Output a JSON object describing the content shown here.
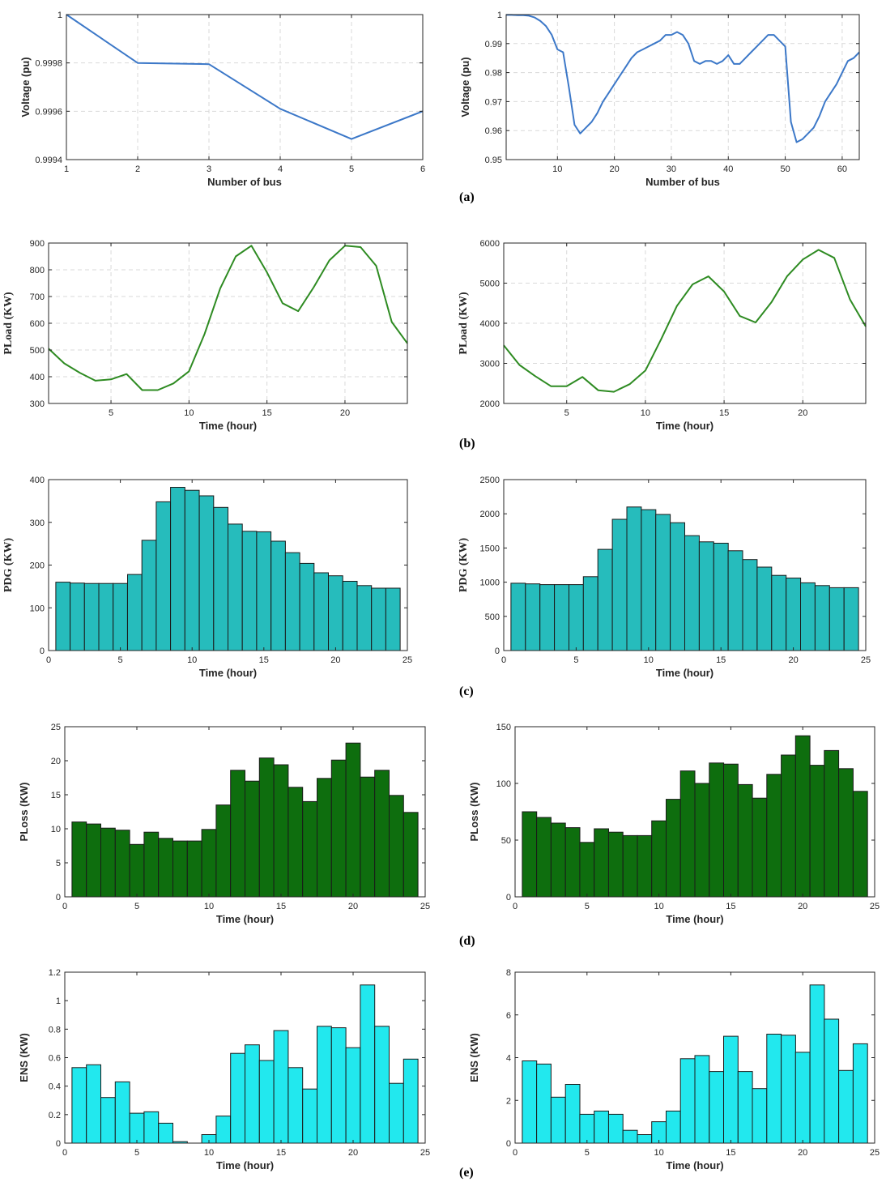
{
  "colors": {
    "voltage_line": "#3c78c8",
    "load_line": "#2e8b22",
    "pdg_bar": "#26bcbc",
    "ploss_bar": "#0e6e0e",
    "ens_bar": "#22e8ee",
    "bar_edge": "#1a1a1a"
  },
  "panel_labels": [
    "(a)",
    "(b)",
    "(c)",
    "(d)",
    "(e)"
  ],
  "chart_data": [
    {
      "type": "line",
      "panel": "(a)",
      "xlabel": "Number of bus",
      "ylabel": "Voltage (pu)",
      "xlim": [
        1,
        6
      ],
      "ylim": [
        0.9994,
        1.0
      ],
      "xticks": [
        1,
        2,
        3,
        4,
        5,
        6
      ],
      "yticks": [
        0.9994,
        0.9996,
        0.9998,
        1
      ],
      "ytick_labels": [
        "0.9994",
        "0.9996",
        "0.9998",
        "1"
      ],
      "grid": true,
      "x": [
        1,
        2,
        3,
        4,
        5,
        6
      ],
      "values": [
        1.0,
        0.9998,
        0.999795,
        0.99961,
        0.999485,
        0.9996
      ]
    },
    {
      "type": "line",
      "panel": "(a)",
      "xlabel": "Number of bus",
      "ylabel": "Voltage (pu)",
      "xlim": [
        1,
        63
      ],
      "ylim": [
        0.95,
        1.0
      ],
      "xticks": [
        10,
        20,
        30,
        40,
        50,
        60
      ],
      "yticks": [
        0.95,
        0.96,
        0.97,
        0.98,
        0.99,
        1
      ],
      "ytick_labels": [
        "0.95",
        "0.96",
        "0.97",
        "0.98",
        "0.99",
        "1"
      ],
      "grid": true,
      "x": [
        1,
        2,
        3,
        4,
        5,
        6,
        7,
        8,
        9,
        10,
        11,
        12,
        13,
        14,
        15,
        16,
        17,
        18,
        19,
        20,
        21,
        22,
        23,
        24,
        25,
        26,
        27,
        28,
        29,
        30,
        31,
        32,
        33,
        34,
        35,
        36,
        37,
        38,
        39,
        40,
        41,
        42,
        43,
        44,
        45,
        46,
        47,
        48,
        49,
        50,
        51,
        52,
        53,
        54,
        55,
        56,
        57,
        58,
        59,
        60,
        61,
        62,
        63
      ],
      "values": [
        0.9999,
        0.9999,
        0.9998,
        0.9998,
        0.9996,
        0.999,
        0.9978,
        0.996,
        0.993,
        0.988,
        0.987,
        0.975,
        0.962,
        0.959,
        0.961,
        0.963,
        0.966,
        0.97,
        0.973,
        0.976,
        0.979,
        0.982,
        0.985,
        0.987,
        0.988,
        0.989,
        0.99,
        0.991,
        0.993,
        0.993,
        0.994,
        0.993,
        0.99,
        0.984,
        0.983,
        0.984,
        0.984,
        0.983,
        0.984,
        0.986,
        0.983,
        0.983,
        0.985,
        0.987,
        0.989,
        0.991,
        0.993,
        0.993,
        0.991,
        0.989,
        0.963,
        0.956,
        0.957,
        0.959,
        0.961,
        0.965,
        0.97,
        0.973,
        0.976,
        0.98,
        0.984,
        0.985,
        0.987
      ]
    },
    {
      "type": "line",
      "panel": "(b)",
      "xlabel": "Time (hour)",
      "ylabel": "PLoad (KW)",
      "xlim": [
        1,
        24
      ],
      "ylim": [
        300,
        900
      ],
      "xticks": [
        5,
        10,
        15,
        20
      ],
      "yticks": [
        300,
        400,
        500,
        600,
        700,
        800,
        900
      ],
      "grid": true,
      "x": [
        1,
        2,
        3,
        4,
        5,
        6,
        7,
        8,
        9,
        10,
        11,
        12,
        13,
        14,
        15,
        16,
        17,
        18,
        19,
        20,
        21,
        22,
        23,
        24
      ],
      "values": [
        505,
        450,
        415,
        385,
        390,
        410,
        350,
        350,
        375,
        420,
        560,
        730,
        850,
        890,
        790,
        675,
        645,
        735,
        835,
        890,
        885,
        815,
        605,
        525
      ]
    },
    {
      "type": "line",
      "panel": "(b)",
      "xlabel": "Time (hour)",
      "ylabel": "PLoad (KW)",
      "xlim": [
        1,
        24
      ],
      "ylim": [
        2000,
        6000
      ],
      "xticks": [
        5,
        10,
        15,
        20
      ],
      "yticks": [
        2000,
        3000,
        4000,
        5000,
        6000
      ],
      "grid": true,
      "x": [
        1,
        2,
        3,
        4,
        5,
        6,
        7,
        8,
        9,
        10,
        11,
        12,
        13,
        14,
        15,
        16,
        17,
        18,
        19,
        20,
        21,
        22,
        23,
        24
      ],
      "values": [
        3450,
        2960,
        2680,
        2430,
        2430,
        2660,
        2330,
        2290,
        2480,
        2820,
        3600,
        4430,
        4970,
        5170,
        4790,
        4180,
        4020,
        4520,
        5170,
        5590,
        5830,
        5630,
        4590,
        3920
      ]
    },
    {
      "type": "bar",
      "panel": "(c)",
      "xlabel": "Time (hour)",
      "ylabel": "PDG (KW)",
      "xlim": [
        0,
        25
      ],
      "ylim": [
        0,
        400
      ],
      "xticks": [
        0,
        5,
        10,
        15,
        20,
        25
      ],
      "yticks": [
        0,
        100,
        200,
        300,
        400
      ],
      "grid": false,
      "x": [
        1,
        2,
        3,
        4,
        5,
        6,
        7,
        8,
        9,
        10,
        11,
        12,
        13,
        14,
        15,
        16,
        17,
        18,
        19,
        20,
        21,
        22,
        23,
        24
      ],
      "values": [
        160,
        158,
        157,
        157,
        157,
        178,
        258,
        348,
        382,
        375,
        362,
        335,
        296,
        279,
        278,
        256,
        229,
        204,
        182,
        175,
        162,
        152,
        146,
        146
      ]
    },
    {
      "type": "bar",
      "panel": "(c)",
      "xlabel": "Time (hour)",
      "ylabel": "PDG (KW)",
      "xlim": [
        0,
        25
      ],
      "ylim": [
        0,
        2500
      ],
      "xticks": [
        0,
        5,
        10,
        15,
        20,
        25
      ],
      "yticks": [
        0,
        500,
        1000,
        1500,
        2000,
        2500
      ],
      "grid": false,
      "x": [
        1,
        2,
        3,
        4,
        5,
        6,
        7,
        8,
        9,
        10,
        11,
        12,
        13,
        14,
        15,
        16,
        17,
        18,
        19,
        20,
        21,
        22,
        23,
        24
      ],
      "values": [
        985,
        975,
        965,
        965,
        965,
        1080,
        1480,
        1920,
        2100,
        2060,
        1990,
        1870,
        1680,
        1590,
        1570,
        1460,
        1330,
        1220,
        1100,
        1060,
        990,
        950,
        920,
        920
      ]
    },
    {
      "type": "bar",
      "panel": "(d)",
      "xlabel": "Time (hour)",
      "ylabel": "PLoss (KW)",
      "xlim": [
        0,
        25
      ],
      "ylim": [
        0,
        25
      ],
      "xticks": [
        0,
        5,
        10,
        15,
        20,
        25
      ],
      "yticks": [
        0,
        5,
        10,
        15,
        20,
        25
      ],
      "grid": false,
      "x": [
        1,
        2,
        3,
        4,
        5,
        6,
        7,
        8,
        9,
        10,
        11,
        12,
        13,
        14,
        15,
        16,
        17,
        18,
        19,
        20,
        21,
        22,
        23,
        24
      ],
      "values": [
        11.0,
        10.7,
        10.1,
        9.8,
        7.7,
        9.5,
        8.6,
        8.2,
        8.2,
        9.9,
        13.5,
        18.6,
        17.0,
        20.4,
        19.4,
        16.1,
        14.0,
        17.4,
        20.1,
        22.6,
        17.6,
        18.6,
        14.9,
        12.4
      ]
    },
    {
      "type": "bar",
      "panel": "(d)",
      "xlabel": "Time (hour)",
      "ylabel": "PLoss (KW)",
      "xlim": [
        0,
        25
      ],
      "ylim": [
        0,
        150
      ],
      "xticks": [
        0,
        5,
        10,
        15,
        20,
        25
      ],
      "yticks": [
        0,
        50,
        100,
        150
      ],
      "grid": false,
      "x": [
        1,
        2,
        3,
        4,
        5,
        6,
        7,
        8,
        9,
        10,
        11,
        12,
        13,
        14,
        15,
        16,
        17,
        18,
        19,
        20,
        21,
        22,
        23,
        24
      ],
      "values": [
        75,
        70,
        65,
        61,
        48,
        60,
        57,
        54,
        54,
        67,
        86,
        111,
        100,
        118,
        117,
        99,
        87,
        108,
        125,
        142,
        116,
        129,
        113,
        93
      ]
    },
    {
      "type": "bar",
      "panel": "(e)",
      "xlabel": "Time (hour)",
      "ylabel": "ENS (KW)",
      "xlim": [
        0,
        25
      ],
      "ylim": [
        0,
        1.2
      ],
      "xticks": [
        0,
        5,
        10,
        15,
        20,
        25
      ],
      "yticks": [
        0,
        0.2,
        0.4,
        0.6,
        0.8,
        1,
        1.2
      ],
      "ytick_labels": [
        "0",
        "0.2",
        "0.4",
        "0.6",
        "0.8",
        "1",
        "1.2"
      ],
      "grid": false,
      "x": [
        1,
        2,
        3,
        4,
        5,
        6,
        7,
        8,
        9,
        10,
        11,
        12,
        13,
        14,
        15,
        16,
        17,
        18,
        19,
        20,
        21,
        22,
        23,
        24
      ],
      "values": [
        0.53,
        0.55,
        0.32,
        0.43,
        0.21,
        0.22,
        0.14,
        0.01,
        0.0,
        0.06,
        0.19,
        0.63,
        0.69,
        0.58,
        0.79,
        0.53,
        0.38,
        0.82,
        0.81,
        0.67,
        1.11,
        0.82,
        0.42,
        0.59
      ]
    },
    {
      "type": "bar",
      "panel": "(e)",
      "xlabel": "Time (hour)",
      "ylabel": "ENS (KW)",
      "xlim": [
        0,
        25
      ],
      "ylim": [
        0,
        8
      ],
      "xticks": [
        0,
        5,
        10,
        15,
        20,
        25
      ],
      "yticks": [
        0,
        2,
        4,
        6,
        8
      ],
      "grid": false,
      "x": [
        1,
        2,
        3,
        4,
        5,
        6,
        7,
        8,
        9,
        10,
        11,
        12,
        13,
        14,
        15,
        16,
        17,
        18,
        19,
        20,
        21,
        22,
        23,
        24
      ],
      "values": [
        3.85,
        3.7,
        2.15,
        2.75,
        1.35,
        1.5,
        1.35,
        0.6,
        0.4,
        1.0,
        1.5,
        3.95,
        4.1,
        3.35,
        5.0,
        3.35,
        2.55,
        5.1,
        5.05,
        4.25,
        7.4,
        5.8,
        3.4,
        4.65
      ]
    }
  ]
}
